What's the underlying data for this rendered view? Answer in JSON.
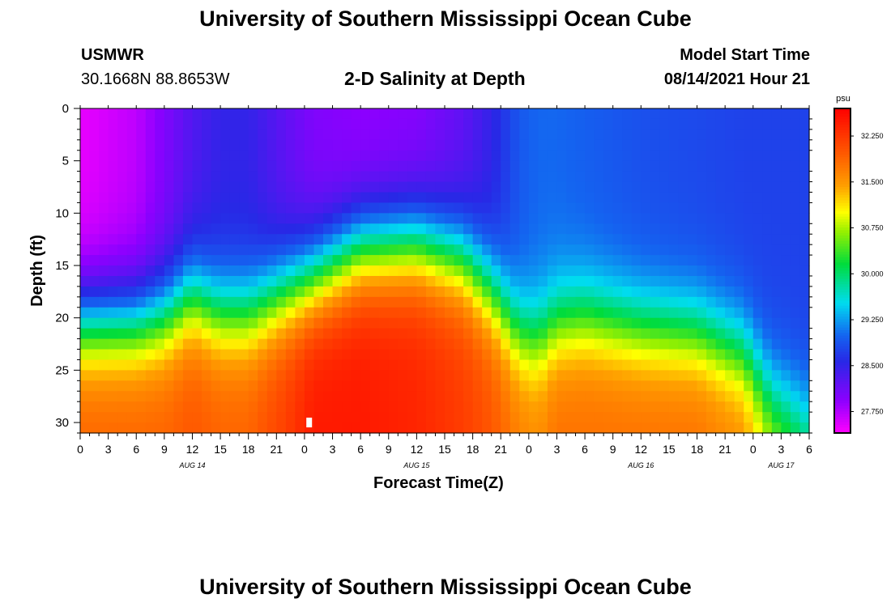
{
  "page": {
    "title_top": "University of Southern Mississippi Ocean Cube",
    "title_bottom": "University of Southern Mississippi Ocean Cube",
    "station": "USMWR",
    "coords": "30.1668N  88.8653W",
    "plot_title": "2-D Salinity at Depth",
    "model_start_label": "Model Start Time",
    "model_start_value": "08/14/2021 Hour 21"
  },
  "chart_data": {
    "type": "heatmap",
    "title": "2-D Salinity at Depth",
    "xlabel": "Forecast Time(Z)",
    "ylabel": "Depth (ft)",
    "colorbar_unit": "psu",
    "colorbar_ticks": [
      "32.250",
      "31.500",
      "30.750",
      "30.000",
      "29.250",
      "28.500",
      "27.750"
    ],
    "colorbar_range": [
      27.4,
      32.7
    ],
    "x_tick_labels": [
      "0",
      "3",
      "6",
      "9",
      "12",
      "15",
      "18",
      "21",
      "0",
      "3",
      "6",
      "9",
      "12",
      "15",
      "18",
      "21",
      "0",
      "3",
      "6",
      "9",
      "12",
      "15",
      "18",
      "21",
      "0",
      "3",
      "6"
    ],
    "date_labels": [
      {
        "label": "AUG 14",
        "tick_index": 4
      },
      {
        "label": "AUG 15",
        "tick_index": 12
      },
      {
        "label": "AUG 16",
        "tick_index": 20
      },
      {
        "label": "AUG 17",
        "tick_index": 25
      }
    ],
    "y_ticks": [
      0,
      5,
      10,
      15,
      20,
      25,
      30
    ],
    "ylim": [
      0,
      31
    ],
    "xlim_hours": [
      0,
      78
    ],
    "marker": {
      "hour": 24.5,
      "depth_ft": 30
    },
    "profile_hours": [
      0,
      6,
      9,
      12,
      15,
      18,
      22,
      25,
      30,
      36,
      41,
      44,
      47,
      49,
      51,
      54,
      57,
      60,
      66,
      71,
      74,
      78
    ],
    "profile_surface_salinity": [
      27.5,
      27.7,
      28.0,
      28.3,
      28.5,
      28.5,
      28.2,
      28.0,
      27.9,
      27.95,
      28.2,
      28.5,
      28.9,
      29.0,
      29.0,
      28.95,
      28.9,
      28.85,
      28.8,
      28.75,
      28.75,
      28.75
    ],
    "profile_mid_depth_ft": [
      20.5,
      20.5,
      19.8,
      18.0,
      19.5,
      19.5,
      17.5,
      16.2,
      13.5,
      13.0,
      14.5,
      17.5,
      21.5,
      22.0,
      20.5,
      20.0,
      20.5,
      21.0,
      21.5,
      23.5,
      27.5,
      29.5
    ],
    "profile_deep_salinity": [
      31.9,
      31.9,
      31.9,
      32.0,
      31.9,
      31.9,
      32.2,
      32.5,
      32.5,
      32.4,
      32.2,
      32.0,
      31.7,
      31.6,
      31.8,
      31.8,
      31.8,
      31.8,
      31.8,
      31.6,
      31.0,
      30.4
    ]
  }
}
